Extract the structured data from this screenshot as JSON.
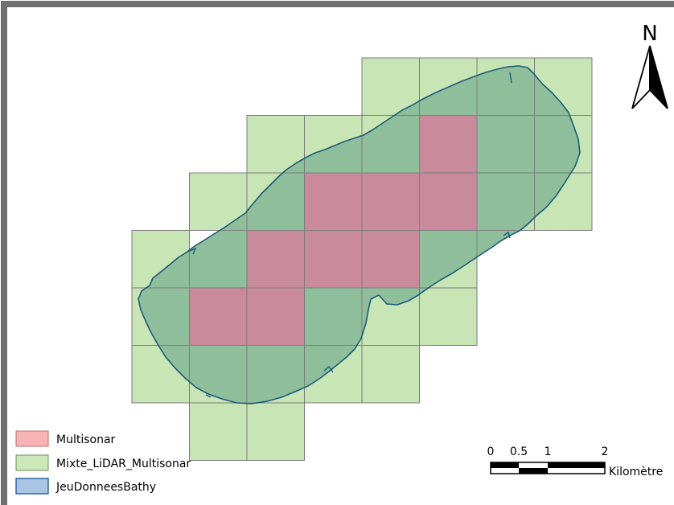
{
  "map": {
    "north_label": "N",
    "colors": {
      "frame": "#707070",
      "multisonar_fill": "#c98a9c",
      "multisonar_swatch": "#f8b4b4",
      "mixte_fill": "#c8e5b6",
      "mixte_overlap_fill": "#8fbf9a",
      "tile_stroke": "#7d7d7d",
      "bathy_outline": "#1b5a7a",
      "bathy_swatch": "#aac4e4"
    }
  },
  "legend": {
    "items": [
      {
        "label": "Multisonar",
        "color": "#f8b4b4",
        "stroke": "#c06868"
      },
      {
        "label": "Mixte_LiDAR_Multisonar",
        "color": "#cce8b8",
        "stroke": "#6a8f5a"
      },
      {
        "label": "JeuDonneesBathy",
        "color": "#aac4e4",
        "stroke": "#1f5fa8"
      }
    ]
  },
  "scale_bar": {
    "ticks": [
      "0",
      "0.5",
      "1",
      "2"
    ],
    "unit": "Kilomètre"
  }
}
